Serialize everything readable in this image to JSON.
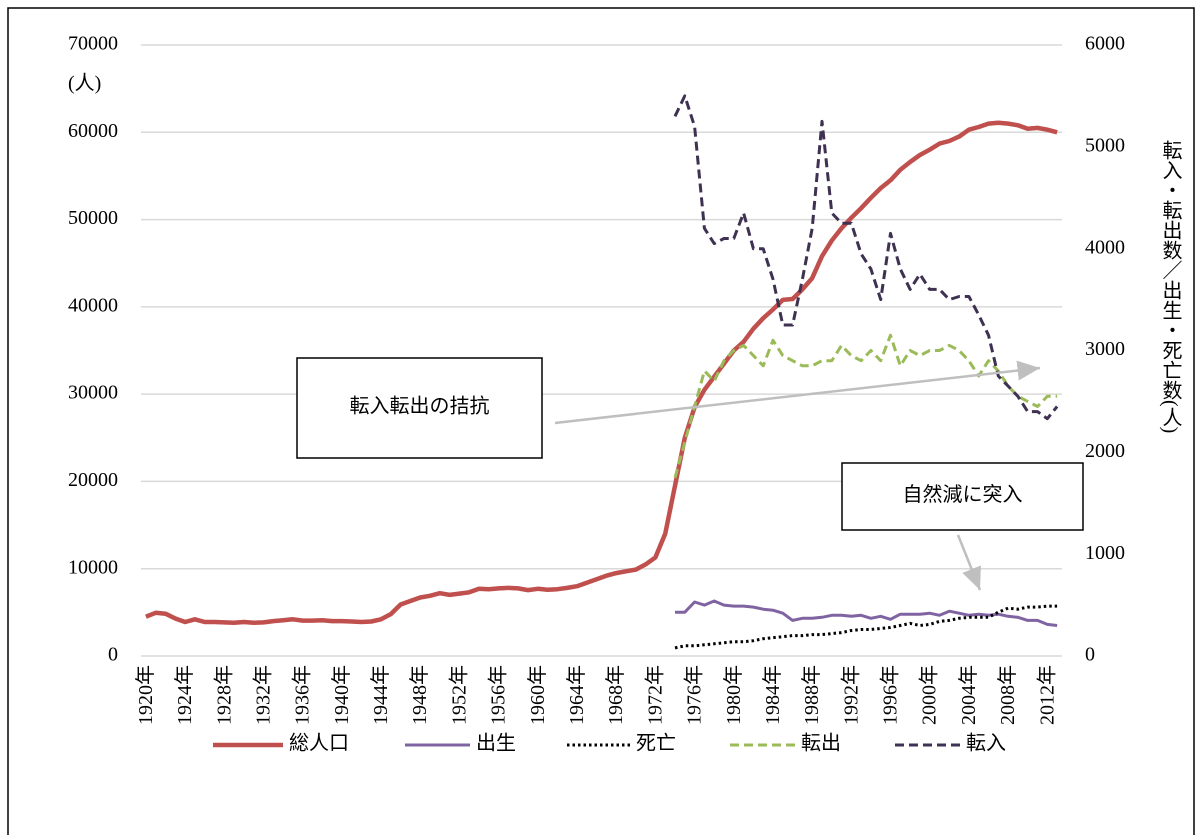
{
  "chart_data": {
    "type": "line",
    "categories": [
      "1920年",
      null,
      null,
      null,
      "1924年",
      null,
      null,
      null,
      "1928年",
      null,
      null,
      null,
      "1932年",
      null,
      null,
      null,
      "1936年",
      null,
      null,
      null,
      "1940年",
      null,
      null,
      null,
      "1944年",
      null,
      null,
      null,
      "1948年",
      null,
      null,
      null,
      "1952年",
      null,
      null,
      null,
      "1956年",
      null,
      null,
      null,
      "1960年",
      null,
      null,
      null,
      "1964年",
      null,
      null,
      null,
      "1968年",
      null,
      null,
      null,
      "1972年",
      null,
      null,
      null,
      "1976年",
      null,
      null,
      null,
      "1980年",
      null,
      null,
      null,
      "1984年",
      null,
      null,
      null,
      "1988年",
      null,
      null,
      null,
      "1992年",
      null,
      null,
      null,
      "1996年",
      null,
      null,
      null,
      "2000年",
      null,
      null,
      null,
      "2004年",
      null,
      null,
      null,
      "2008年",
      null,
      null,
      null,
      "2012年",
      null
    ],
    "series": [
      {
        "name": "総人口",
        "color": "#c0504d",
        "dash": "solid",
        "axis": "y",
        "values": [
          4500,
          4950,
          4850,
          4300,
          3900,
          4200,
          3900,
          3900,
          3850,
          3800,
          3900,
          3800,
          3850,
          4000,
          4100,
          4200,
          4050,
          4050,
          4100,
          4000,
          4000,
          3950,
          3900,
          3950,
          4200,
          4800,
          5900,
          6300,
          6700,
          6900,
          7200,
          7000,
          7150,
          7300,
          7700,
          7650,
          7750,
          7800,
          7750,
          7550,
          7700,
          7600,
          7650,
          7800,
          8000,
          8400,
          8800,
          9200,
          9500,
          9700,
          9900,
          10500,
          11300,
          14000,
          19500,
          25000,
          28500,
          30500,
          32000,
          33500,
          35000,
          36000,
          37500,
          38700,
          39700,
          40800,
          40900,
          42000,
          43300,
          45800,
          47600,
          49000,
          50200,
          51300,
          52500,
          53600,
          54500,
          55700,
          56600,
          57400,
          58000,
          58700,
          59000,
          59500,
          60300,
          60600,
          61000,
          61100,
          61000,
          60800,
          60400,
          60500,
          60300,
          60000
        ]
      },
      {
        "name": "出生",
        "color": "#8064a2",
        "dash": "solid",
        "axis": "y2",
        "values": [
          null,
          null,
          null,
          null,
          null,
          null,
          null,
          null,
          null,
          null,
          null,
          null,
          null,
          null,
          null,
          null,
          null,
          null,
          null,
          null,
          null,
          null,
          null,
          null,
          null,
          null,
          null,
          null,
          null,
          null,
          null,
          null,
          null,
          null,
          null,
          null,
          null,
          null,
          null,
          null,
          null,
          null,
          null,
          null,
          null,
          null,
          null,
          null,
          null,
          null,
          null,
          null,
          null,
          null,
          430,
          430,
          530,
          500,
          540,
          500,
          490,
          490,
          480,
          460,
          450,
          420,
          350,
          370,
          370,
          380,
          400,
          400,
          390,
          400,
          370,
          390,
          360,
          410,
          410,
          410,
          420,
          400,
          440,
          420,
          400,
          410,
          400,
          410,
          390,
          380,
          350,
          350,
          310,
          300
        ]
      },
      {
        "name": "死亡",
        "color": "#000000",
        "dash": "dotted",
        "axis": "y2",
        "values": [
          null,
          null,
          null,
          null,
          null,
          null,
          null,
          null,
          null,
          null,
          null,
          null,
          null,
          null,
          null,
          null,
          null,
          null,
          null,
          null,
          null,
          null,
          null,
          null,
          null,
          null,
          null,
          null,
          null,
          null,
          null,
          null,
          null,
          null,
          null,
          null,
          null,
          null,
          null,
          null,
          null,
          null,
          null,
          null,
          null,
          null,
          null,
          null,
          null,
          null,
          null,
          null,
          null,
          null,
          80,
          100,
          100,
          110,
          120,
          130,
          140,
          140,
          150,
          170,
          180,
          190,
          200,
          200,
          210,
          210,
          220,
          230,
          250,
          260,
          260,
          270,
          280,
          300,
          320,
          300,
          310,
          340,
          350,
          370,
          380,
          380,
          380,
          430,
          470,
          460,
          480,
          480,
          490,
          490
        ]
      },
      {
        "name": "転出",
        "color": "#9bbb59",
        "dash": "dashed",
        "axis": "y2",
        "values": [
          null,
          null,
          null,
          null,
          null,
          null,
          null,
          null,
          null,
          null,
          null,
          null,
          null,
          null,
          null,
          null,
          null,
          null,
          null,
          null,
          null,
          null,
          null,
          null,
          null,
          null,
          null,
          null,
          null,
          null,
          null,
          null,
          null,
          null,
          null,
          null,
          null,
          null,
          null,
          null,
          null,
          null,
          null,
          null,
          null,
          null,
          null,
          null,
          null,
          null,
          null,
          null,
          null,
          null,
          1750,
          2100,
          2450,
          2800,
          2700,
          2900,
          3000,
          3050,
          2950,
          2850,
          3100,
          2950,
          2900,
          2850,
          2850,
          2900,
          2900,
          3050,
          2950,
          2900,
          3000,
          2900,
          3150,
          2850,
          3000,
          2950,
          3000,
          3000,
          3050,
          3000,
          2900,
          2750,
          2900,
          2800,
          2650,
          2550,
          2500,
          2450,
          2550,
          2550
        ]
      },
      {
        "name": "転入",
        "color": "#3f3151",
        "dash": "dashed",
        "axis": "y2",
        "values": [
          null,
          null,
          null,
          null,
          null,
          null,
          null,
          null,
          null,
          null,
          null,
          null,
          null,
          null,
          null,
          null,
          null,
          null,
          null,
          null,
          null,
          null,
          null,
          null,
          null,
          null,
          null,
          null,
          null,
          null,
          null,
          null,
          null,
          null,
          null,
          null,
          null,
          null,
          null,
          null,
          null,
          null,
          null,
          null,
          null,
          null,
          null,
          null,
          null,
          null,
          null,
          null,
          null,
          null,
          5300,
          5500,
          5200,
          4200,
          4050,
          4100,
          4100,
          4350,
          4000,
          4000,
          3700,
          3250,
          3250,
          3700,
          4200,
          5250,
          4350,
          4250,
          4250,
          3950,
          3800,
          3500,
          4150,
          3800,
          3600,
          3750,
          3600,
          3600,
          3500,
          3530,
          3530,
          3350,
          3150,
          2750,
          2650,
          2550,
          2400,
          2400,
          2330,
          2450
        ]
      }
    ],
    "ylabel": "(人)",
    "y2label": "転入・転出数／出生・死亡数(人)",
    "ylim": [
      0,
      70000
    ],
    "yticks": [
      0,
      10000,
      20000,
      30000,
      40000,
      50000,
      60000,
      70000
    ],
    "y2lim": [
      0,
      6000
    ],
    "y2ticks": [
      0,
      1000,
      2000,
      3000,
      4000,
      5000,
      6000
    ],
    "grid": true,
    "legend": "bottom",
    "annotations": [
      {
        "text": "転入転出の拮抗"
      },
      {
        "text": "自然減に突入"
      }
    ]
  }
}
